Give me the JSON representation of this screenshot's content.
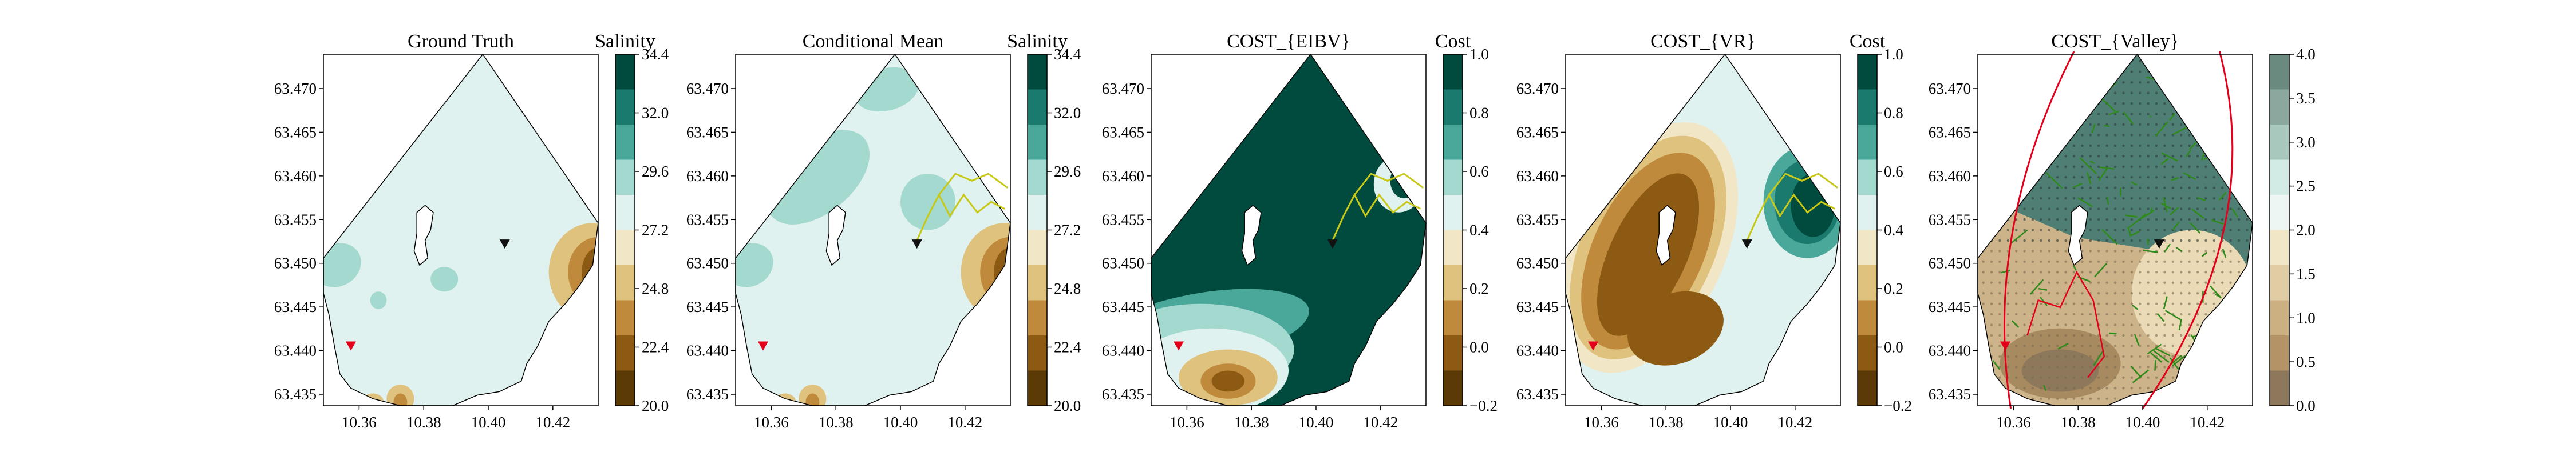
{
  "figure": {
    "panels": [
      {
        "title": "Ground Truth",
        "field": "salinity",
        "colorbar": {
          "title": "Salinity",
          "ticks": [
            "34.4",
            "32.0",
            "29.6",
            "27.2",
            "24.8",
            "22.4",
            "20.0"
          ]
        }
      },
      {
        "title": "Conditional Mean",
        "field": "salinity",
        "colorbar": {
          "title": "Salinity",
          "ticks": [
            "34.4",
            "32.0",
            "29.6",
            "27.2",
            "24.8",
            "22.4",
            "20.0"
          ]
        }
      },
      {
        "title": "COST_{EIBV}",
        "field": "cost_eibv",
        "colorbar": {
          "title": "Cost",
          "ticks": [
            "1.0",
            "0.8",
            "0.6",
            "0.4",
            "0.2",
            "0.0",
            "−0.2"
          ]
        }
      },
      {
        "title": "COST_{VR}",
        "field": "cost_vr",
        "colorbar": {
          "title": "Cost",
          "ticks": [
            "1.0",
            "0.8",
            "0.6",
            "0.4",
            "0.2",
            "0.0",
            "−0.2"
          ]
        }
      },
      {
        "title": "COST_{Valley}",
        "field": "cost_valley",
        "colorbar": {
          "title": "",
          "ticks": [
            "4.0",
            "3.5",
            "3.0",
            "2.5",
            "2.0",
            "1.5",
            "1.0",
            "0.5",
            "0.0"
          ]
        }
      }
    ],
    "axes": {
      "y_ticks": [
        "63.470",
        "63.465",
        "63.460",
        "63.455",
        "63.450",
        "63.445",
        "63.440",
        "63.435"
      ],
      "x_ticks": [
        "10.36",
        "10.38",
        "10.40",
        "10.42"
      ]
    },
    "colors": {
      "brown_dark": "#5b3a06",
      "brown": "#8c5a12",
      "brown_mid": "#bf8a3c",
      "tan": "#dfc27d",
      "cream": "#f1e6c6",
      "mint_light": "#e0f2ef",
      "mint": "#a4d9cf",
      "teal": "#4aa89b",
      "teal_dark": "#1a7a6e",
      "teal_darkest": "#004b3e",
      "valley_grey": "#6a8a80",
      "marker_red": "#e3001b",
      "marker_black": "#111111",
      "path_yellow": "#c8c818",
      "path_green": "#2e8b1a"
    }
  },
  "chart_data": [
    {
      "type": "heatmap",
      "title": "Ground Truth",
      "colorbar_label": "Salinity",
      "clim": [
        20.0,
        34.4
      ],
      "xlim": [
        10.345,
        10.435
      ],
      "ylim": [
        63.434,
        63.474
      ]
    },
    {
      "type": "heatmap",
      "title": "Conditional Mean",
      "colorbar_label": "Salinity",
      "clim": [
        20.0,
        34.4
      ],
      "xlim": [
        10.345,
        10.435
      ],
      "ylim": [
        63.434,
        63.474
      ]
    },
    {
      "type": "heatmap",
      "title": "COST_{EIBV}",
      "colorbar_label": "Cost",
      "clim": [
        -0.2,
        1.0
      ],
      "xlim": [
        10.345,
        10.435
      ],
      "ylim": [
        63.434,
        63.474
      ]
    },
    {
      "type": "heatmap",
      "title": "COST_{VR}",
      "colorbar_label": "Cost",
      "clim": [
        -0.2,
        1.0
      ],
      "xlim": [
        10.345,
        10.435
      ],
      "ylim": [
        63.434,
        63.474
      ]
    },
    {
      "type": "heatmap",
      "title": "COST_{Valley}",
      "colorbar_label": "",
      "clim": [
        0.0,
        4.0
      ],
      "xlim": [
        10.345,
        10.435
      ],
      "ylim": [
        63.434,
        63.474
      ]
    }
  ]
}
